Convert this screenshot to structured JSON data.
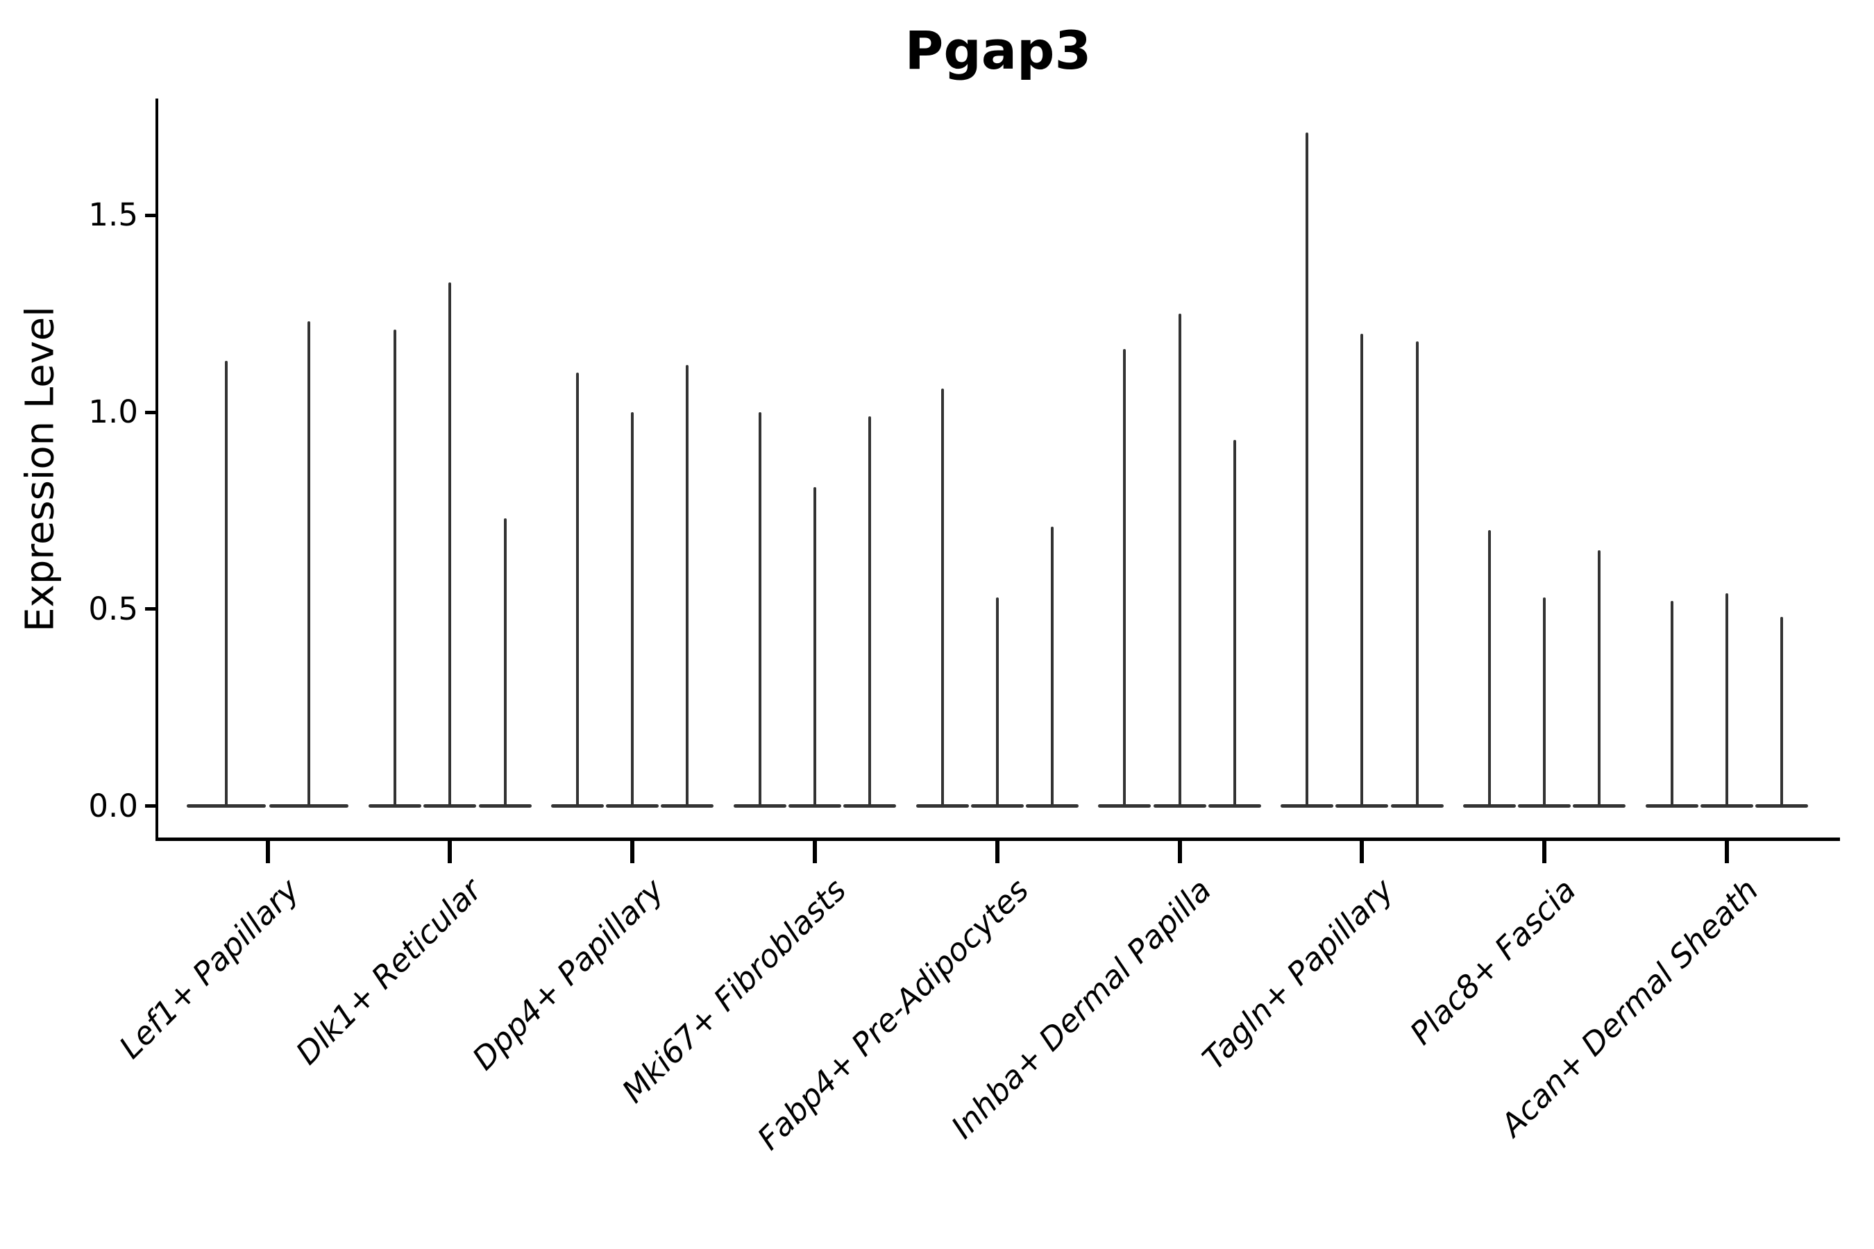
{
  "chart_data": {
    "type": "violin",
    "title": "Pgap3",
    "xlabel": "",
    "ylabel": "Expression Level",
    "yticks": [
      "0.0",
      "0.5",
      "1.0",
      "1.5"
    ],
    "ylim": [
      -0.09,
      1.8
    ],
    "grid": false,
    "legend": "none",
    "categories": [
      "Lef1+ Papillary",
      "Dlk1+ Reticular",
      "Dpp4+ Papillary",
      "Mki67+ Fibroblasts",
      "Fabp4+ Pre-Adipocytes",
      "Inhba+ Dermal Papilla",
      "Tagln+ Papillary",
      "Plac8+ Fascia",
      "Acan+ Dermal Sheath"
    ],
    "series": [
      {
        "category": "Lef1+ Papillary",
        "violin_max_values": [
          1.13,
          1.23
        ]
      },
      {
        "category": "Dlk1+ Reticular",
        "violin_max_values": [
          1.21,
          1.33,
          0.73
        ]
      },
      {
        "category": "Dpp4+ Papillary",
        "violin_max_values": [
          1.1,
          1.0,
          1.12
        ]
      },
      {
        "category": "Mki67+ Fibroblasts",
        "violin_max_values": [
          1.0,
          0.81,
          0.99
        ]
      },
      {
        "category": "Fabp4+ Pre-Adipocytes",
        "violin_max_values": [
          1.06,
          0.53,
          0.71
        ]
      },
      {
        "category": "Inhba+ Dermal Papilla",
        "violin_max_values": [
          1.16,
          1.25,
          0.93
        ]
      },
      {
        "category": "Tagln+ Papillary",
        "violin_max_values": [
          1.71,
          1.2,
          1.18
        ]
      },
      {
        "category": "Plac8+ Fascia",
        "violin_max_values": [
          0.7,
          0.53,
          0.65
        ]
      },
      {
        "category": "Acan+ Dermal Sheath",
        "violin_max_values": [
          0.52,
          0.54,
          0.48
        ]
      }
    ],
    "style": {
      "violin_color": "#333333",
      "axis_color": "#000000",
      "text_color": "#000000"
    },
    "description": "Violin plot; each violin has its probability mass concentrated at 0 (flat wide base) with a thin spike up to its maximum expression value."
  }
}
